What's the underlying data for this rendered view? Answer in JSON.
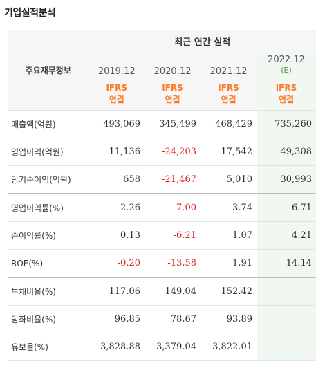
{
  "page_title": "기업실적분석",
  "table": {
    "corner_label": "주요재무정보",
    "main_header": "최근 연간 실적",
    "periods": [
      {
        "label": "2019.12",
        "basis_1": "IFRS",
        "basis_2": "연결"
      },
      {
        "label": "2020.12",
        "basis_1": "IFRS",
        "basis_2": "연결"
      },
      {
        "label": "2021.12",
        "basis_1": "IFRS",
        "basis_2": "연결"
      },
      {
        "label": "2022.12",
        "estimate_mark": "(E)",
        "basis_1": "IFRS",
        "basis_2": "연결"
      }
    ],
    "rows": [
      {
        "label": "매출액(억원)",
        "values": [
          "493,069",
          "345,499",
          "468,429",
          "735,260"
        ]
      },
      {
        "label": "영업이익(억원)",
        "values": [
          "11,136",
          "-24,203",
          "17,542",
          "49,308"
        ]
      },
      {
        "label": "당기순이익(억원)",
        "values": [
          "658",
          "-21,467",
          "5,010",
          "30,993"
        ]
      },
      {
        "label": "영업이익률(%)",
        "values": [
          "2.26",
          "-7.00",
          "3.74",
          "6.71"
        ]
      },
      {
        "label": "순이익률(%)",
        "values": [
          "0.13",
          "-6.21",
          "1.07",
          "4.21"
        ]
      },
      {
        "label": "ROE(%)",
        "values": [
          "-0.20",
          "-13.58",
          "1.91",
          "14.14"
        ]
      },
      {
        "label": "부채비율(%)",
        "values": [
          "117.06",
          "149.04",
          "152.42",
          ""
        ]
      },
      {
        "label": "당좌비율(%)",
        "values": [
          "96.85",
          "78.67",
          "93.89",
          ""
        ]
      },
      {
        "label": "유보율(%)",
        "values": [
          "3,828.88",
          "3,379.04",
          "3,822.01",
          ""
        ]
      }
    ]
  },
  "colors": {
    "negative": "#e02020",
    "basis_text": "#ff7a2a",
    "estimate_column_bg": "#f1f8f1",
    "estimate_mark": "#4a9a4a"
  }
}
